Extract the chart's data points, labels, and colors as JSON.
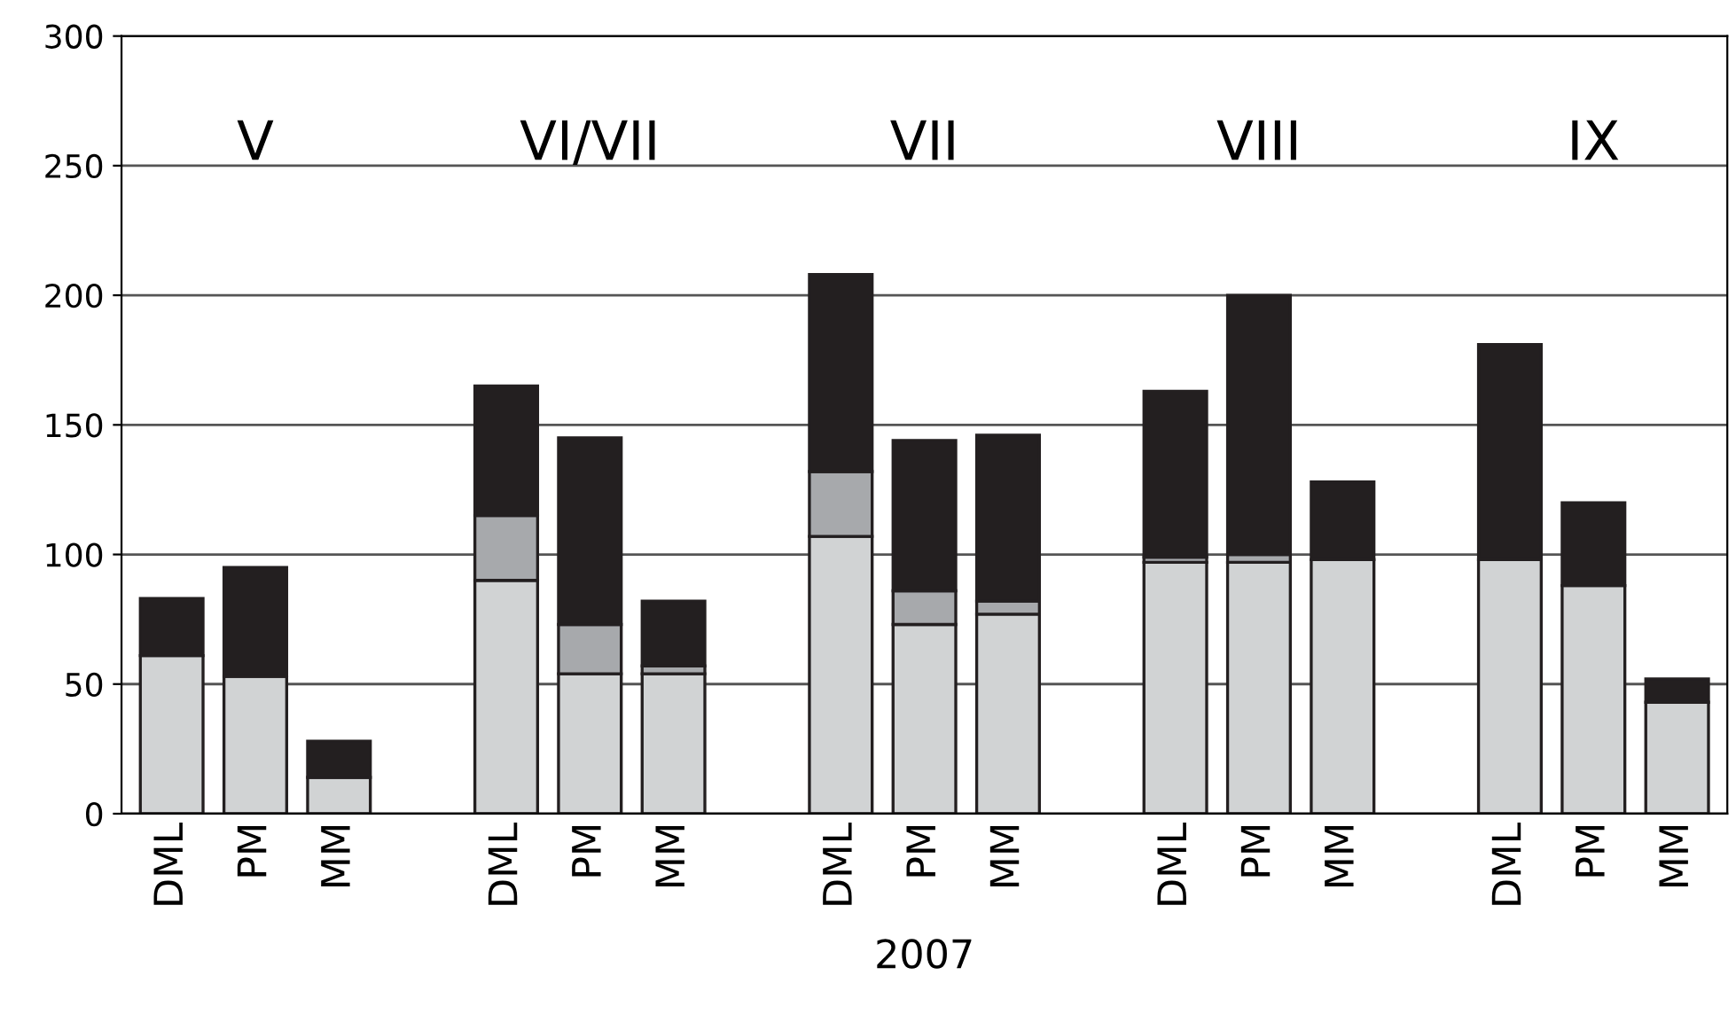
{
  "chart_data": {
    "type": "bar",
    "stacked": true,
    "xlabel": "2007",
    "categories": [
      "DML",
      "PM",
      "MM",
      null,
      "DML",
      "PM",
      "MM",
      null,
      "DML",
      "PM",
      "MM",
      null,
      "DML",
      "PM",
      "MM",
      null,
      "DML",
      "PM",
      "MM"
    ],
    "series": [
      {
        "color": "#d1d3d4",
        "values": [
          61,
          53,
          14,
          null,
          90,
          54,
          54,
          null,
          107,
          73,
          77,
          null,
          97,
          97,
          98,
          null,
          98,
          88,
          43
        ]
      },
      {
        "color": "#a7a9ac",
        "values": [
          0,
          0,
          0,
          null,
          25,
          19,
          3,
          null,
          25,
          13,
          5,
          null,
          2,
          3,
          0,
          null,
          0,
          0,
          0
        ]
      },
      {
        "color": "#231f20",
        "values": [
          22,
          42,
          14,
          null,
          50,
          72,
          25,
          null,
          76,
          58,
          64,
          null,
          64,
          100,
          30,
          null,
          83,
          32,
          9
        ]
      }
    ],
    "annotations": [
      "V",
      "VI/VII",
      "VII",
      "VIII",
      "IX"
    ],
    "ylim": [
      0,
      300
    ],
    "yticks": [
      0,
      50,
      100,
      150,
      200,
      250,
      300
    ],
    "grid": "y",
    "legend": false
  }
}
